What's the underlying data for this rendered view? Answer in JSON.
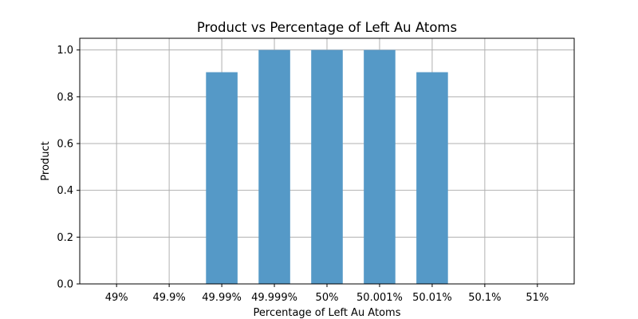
{
  "chart_data": {
    "type": "bar",
    "title": "Product vs Percentage of Left Au Atoms",
    "xlabel": "Percentage of Left Au Atoms",
    "ylabel": "Product",
    "categories": [
      "49%",
      "49.9%",
      "49.99%",
      "49.999%",
      "50%",
      "50.001%",
      "50.01%",
      "50.1%",
      "51%"
    ],
    "values": [
      0,
      0,
      0.905,
      1.0,
      1.0,
      1.0,
      0.905,
      0,
      0
    ],
    "ylim": [
      0,
      1.05
    ],
    "yticks": [
      0.0,
      0.2,
      0.4,
      0.6,
      0.8,
      1.0
    ],
    "ytick_labels": [
      "0.0",
      "0.2",
      "0.4",
      "0.6",
      "0.8",
      "1.0"
    ],
    "grid": true,
    "legend": "none",
    "colors": {
      "bar": "#5599c7",
      "grid": "#b0b0b0"
    }
  }
}
